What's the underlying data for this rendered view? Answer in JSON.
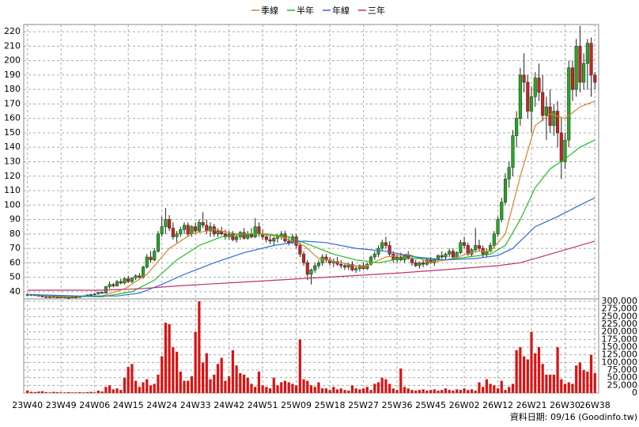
{
  "chart_data": {
    "type": "candlestick",
    "footnote": "資料日期: 09/16 (Goodinfo.tw)",
    "grid": true,
    "up_color": "#22aa22",
    "down_color": "#cc2222",
    "ylim": [
      35,
      225
    ],
    "yticks": [
      40,
      50,
      60,
      70,
      80,
      90,
      100,
      110,
      120,
      130,
      140,
      150,
      160,
      170,
      180,
      190,
      200,
      210,
      220
    ],
    "xlim": [
      -1,
      153
    ],
    "xticks": [
      {
        "value": 0,
        "label": "23W40"
      },
      {
        "value": 9,
        "label": "23W49"
      },
      {
        "value": 18,
        "label": "24W06"
      },
      {
        "value": 27,
        "label": "24W15"
      },
      {
        "value": 36,
        "label": "24W24"
      },
      {
        "value": 45,
        "label": "24W33"
      },
      {
        "value": 54,
        "label": "24W42"
      },
      {
        "value": 63,
        "label": "24W51"
      },
      {
        "value": 72,
        "label": "25W09"
      },
      {
        "value": 81,
        "label": "25W18"
      },
      {
        "value": 90,
        "label": "25W27"
      },
      {
        "value": 99,
        "label": "25W36"
      },
      {
        "value": 108,
        "label": "25W45"
      },
      {
        "value": 117,
        "label": "26W02"
      },
      {
        "value": 126,
        "label": "26W12"
      },
      {
        "value": 135,
        "label": "26W21"
      },
      {
        "value": 144,
        "label": "26W30"
      },
      {
        "value": 152,
        "label": "26W38"
      }
    ],
    "candles": [
      [
        38,
        39,
        37,
        38
      ],
      [
        38,
        38.5,
        37,
        37.5
      ],
      [
        37.5,
        38,
        37,
        37.8
      ],
      [
        37.8,
        38,
        36.5,
        37
      ],
      [
        37,
        37.5,
        36,
        36.5
      ],
      [
        36.5,
        37,
        35.5,
        36
      ],
      [
        36,
        36.8,
        35.5,
        36.5
      ],
      [
        36.5,
        37,
        36,
        36.2
      ],
      [
        36.2,
        36.8,
        35.8,
        36
      ],
      [
        36,
        36.5,
        35.5,
        36.3
      ],
      [
        36.3,
        36.8,
        35.8,
        36
      ],
      [
        36,
        36.5,
        35.5,
        35.8
      ],
      [
        35.8,
        36.5,
        35.5,
        36.2
      ],
      [
        36.2,
        36.8,
        35.8,
        36
      ],
      [
        36,
        37,
        35.8,
        36.8
      ],
      [
        36.8,
        37.5,
        36.5,
        37
      ],
      [
        37,
        38,
        36.8,
        37.8
      ],
      [
        37.8,
        38.5,
        37,
        38
      ],
      [
        38,
        39,
        37.5,
        38.5
      ],
      [
        38.5,
        40,
        38,
        39.5
      ],
      [
        39.5,
        40,
        38.5,
        39
      ],
      [
        39,
        44,
        38.8,
        43.5
      ],
      [
        43.5,
        47,
        42,
        45
      ],
      [
        45,
        46,
        43,
        44
      ],
      [
        44,
        48,
        43.5,
        47
      ],
      [
        47,
        49,
        45,
        46
      ],
      [
        46,
        50,
        45,
        49
      ],
      [
        49,
        51,
        46,
        47
      ],
      [
        47,
        50,
        46,
        49.5
      ],
      [
        49.5,
        52,
        48,
        51
      ],
      [
        51,
        53,
        49,
        50
      ],
      [
        50,
        58,
        49,
        57
      ],
      [
        57,
        66,
        56,
        64
      ],
      [
        64,
        68,
        60,
        62
      ],
      [
        62,
        70,
        61,
        68
      ],
      [
        68,
        82,
        67,
        80
      ],
      [
        80,
        92,
        78,
        85
      ],
      [
        85,
        98,
        80,
        90
      ],
      [
        90,
        93,
        82,
        84
      ],
      [
        84,
        88,
        76,
        78
      ],
      [
        78,
        82,
        74,
        80
      ],
      [
        80,
        85,
        78,
        83
      ],
      [
        83,
        88,
        80,
        86
      ],
      [
        86,
        88,
        78,
        80
      ],
      [
        80,
        86,
        78,
        85
      ],
      [
        85,
        88,
        80,
        82
      ],
      [
        82,
        90,
        81,
        88
      ],
      [
        88,
        95,
        84,
        86
      ],
      [
        86,
        90,
        80,
        82
      ],
      [
        82,
        88,
        78,
        85
      ],
      [
        85,
        87,
        78,
        80
      ],
      [
        80,
        84,
        78,
        82
      ],
      [
        82,
        85,
        79,
        80
      ],
      [
        80,
        83,
        76,
        78
      ],
      [
        78,
        82,
        76,
        80
      ],
      [
        80,
        82,
        75,
        76
      ],
      [
        76,
        80,
        74,
        78
      ],
      [
        78,
        82,
        76,
        81
      ],
      [
        81,
        84,
        76,
        77
      ],
      [
        77,
        82,
        76,
        80
      ],
      [
        80,
        84,
        77,
        78
      ],
      [
        78,
        91,
        77,
        85
      ],
      [
        85,
        88,
        78,
        80
      ],
      [
        80,
        83,
        76,
        78
      ],
      [
        78,
        80,
        74,
        76
      ],
      [
        76,
        79,
        73,
        75
      ],
      [
        75,
        78,
        72,
        77
      ],
      [
        77,
        80,
        74,
        78
      ],
      [
        78,
        82,
        76,
        80
      ],
      [
        80,
        82,
        74,
        75
      ],
      [
        75,
        78,
        72,
        74
      ],
      [
        74,
        80,
        73,
        78
      ],
      [
        78,
        80,
        70,
        72
      ],
      [
        72,
        74,
        64,
        66
      ],
      [
        66,
        68,
        58,
        60
      ],
      [
        60,
        62,
        48,
        52
      ],
      [
        52,
        56,
        45,
        55
      ],
      [
        55,
        60,
        53,
        58
      ],
      [
        58,
        62,
        56,
        60
      ],
      [
        60,
        66,
        58,
        64
      ],
      [
        64,
        66,
        60,
        62
      ],
      [
        62,
        64,
        58,
        60
      ],
      [
        60,
        63,
        57,
        61
      ],
      [
        61,
        64,
        58,
        59
      ],
      [
        59,
        62,
        56,
        58
      ],
      [
        58,
        60,
        55,
        57
      ],
      [
        57,
        60,
        55,
        59
      ],
      [
        59,
        61,
        54,
        55
      ],
      [
        55,
        58,
        53,
        56
      ],
      [
        56,
        59,
        54,
        58
      ],
      [
        58,
        60,
        55,
        56
      ],
      [
        56,
        60,
        55,
        59
      ],
      [
        59,
        65,
        58,
        64
      ],
      [
        64,
        68,
        62,
        66
      ],
      [
        66,
        72,
        64,
        70
      ],
      [
        70,
        76,
        68,
        74
      ],
      [
        74,
        78,
        70,
        72
      ],
      [
        72,
        75,
        64,
        66
      ],
      [
        66,
        68,
        60,
        62
      ],
      [
        62,
        66,
        60,
        64
      ],
      [
        64,
        67,
        61,
        62
      ],
      [
        62,
        66,
        60,
        65
      ],
      [
        65,
        68,
        62,
        63
      ],
      [
        63,
        64,
        58,
        60
      ],
      [
        60,
        62,
        57,
        58
      ],
      [
        58,
        61,
        56,
        60
      ],
      [
        60,
        62,
        57,
        59
      ],
      [
        59,
        63,
        58,
        62
      ],
      [
        62,
        64,
        59,
        60
      ],
      [
        60,
        63,
        58,
        62
      ],
      [
        62,
        66,
        61,
        65
      ],
      [
        65,
        68,
        63,
        64
      ],
      [
        64,
        67,
        62,
        66
      ],
      [
        66,
        70,
        64,
        68
      ],
      [
        68,
        70,
        62,
        64
      ],
      [
        64,
        68,
        63,
        67
      ],
      [
        67,
        76,
        66,
        74
      ],
      [
        74,
        78,
        70,
        72
      ],
      [
        72,
        74,
        65,
        66
      ],
      [
        66,
        70,
        64,
        69
      ],
      [
        69,
        84,
        67,
        72
      ],
      [
        72,
        76,
        68,
        70
      ],
      [
        70,
        72,
        64,
        66
      ],
      [
        66,
        70,
        64,
        68
      ],
      [
        68,
        74,
        67,
        72
      ],
      [
        72,
        82,
        70,
        80
      ],
      [
        80,
        92,
        78,
        90
      ],
      [
        90,
        105,
        88,
        102
      ],
      [
        102,
        122,
        100,
        118
      ],
      [
        118,
        130,
        112,
        126
      ],
      [
        126,
        152,
        120,
        148
      ],
      [
        148,
        165,
        140,
        160
      ],
      [
        160,
        195,
        155,
        190
      ],
      [
        190,
        205,
        178,
        185
      ],
      [
        185,
        190,
        160,
        165
      ],
      [
        165,
        182,
        150,
        175
      ],
      [
        175,
        192,
        168,
        188
      ],
      [
        188,
        198,
        172,
        178
      ],
      [
        178,
        190,
        158,
        162
      ],
      [
        162,
        175,
        145,
        168
      ],
      [
        168,
        180,
        150,
        155
      ],
      [
        155,
        170,
        148,
        165
      ],
      [
        165,
        172,
        140,
        150
      ],
      [
        150,
        160,
        118,
        130
      ],
      [
        130,
        150,
        125,
        145
      ],
      [
        145,
        200,
        140,
        195
      ],
      [
        195,
        200,
        172,
        180
      ],
      [
        180,
        215,
        175,
        210
      ],
      [
        210,
        224,
        178,
        185
      ],
      [
        185,
        205,
        180,
        198
      ],
      [
        198,
        215,
        180,
        212
      ],
      [
        212,
        216,
        175,
        190
      ],
      [
        190,
        192,
        180,
        185
      ]
    ],
    "series": [
      {
        "name": "季線",
        "color": "#d9822b",
        "x": [
          0,
          10,
          20,
          26,
          32,
          38,
          44,
          50,
          56,
          62,
          68,
          74,
          78,
          84,
          90,
          96,
          102,
          108,
          114,
          120,
          124,
          128,
          132,
          136,
          140,
          144,
          148,
          152
        ],
        "values": [
          38,
          36.5,
          37,
          42,
          52,
          70,
          80,
          83,
          80,
          80,
          78,
          72,
          63,
          60,
          57,
          64,
          66,
          60,
          63,
          68,
          68,
          80,
          120,
          155,
          163,
          160,
          168,
          172
        ]
      },
      {
        "name": "半年",
        "color": "#22bb22",
        "x": [
          0,
          10,
          20,
          28,
          34,
          40,
          46,
          52,
          58,
          64,
          70,
          76,
          82,
          88,
          94,
          100,
          106,
          112,
          118,
          124,
          128,
          132,
          136,
          140,
          144,
          148,
          152
        ],
        "values": [
          38,
          37,
          36.5,
          40,
          48,
          62,
          72,
          78,
          80,
          80,
          78,
          72,
          66,
          62,
          60,
          63,
          63,
          62,
          64,
          66,
          72,
          90,
          112,
          125,
          132,
          140,
          145
        ]
      },
      {
        "name": "年線",
        "color": "#2d6bd6",
        "x": [
          0,
          14,
          24,
          30,
          36,
          42,
          50,
          58,
          66,
          74,
          80,
          88,
          96,
          104,
          112,
          120,
          126,
          130,
          136,
          142,
          148,
          152
        ],
        "values": [
          38,
          37,
          37,
          39,
          45,
          52,
          60,
          67,
          72,
          75,
          74,
          70,
          68,
          64,
          62,
          63,
          65,
          70,
          85,
          92,
          100,
          105
        ]
      },
      {
        "name": "三年",
        "color": "#c0306a",
        "x": [
          0,
          20,
          30,
          40,
          60,
          80,
          100,
          116,
          126,
          132,
          140,
          148,
          152
        ],
        "values": [
          41,
          41,
          42,
          44,
          47,
          50,
          53,
          56,
          58,
          60,
          66,
          72,
          75
        ]
      }
    ],
    "volume": {
      "color": "#dd1111",
      "ylim": [
        0,
        300000
      ],
      "yticks": [
        {
          "value": 0,
          "label": "0"
        },
        {
          "value": 25000,
          "label": "25,000"
        },
        {
          "value": 50000,
          "label": "50,000"
        },
        {
          "value": 75000,
          "label": "75,000"
        },
        {
          "value": 100000,
          "label": "100,000"
        },
        {
          "value": 125000,
          "label": "125,000"
        },
        {
          "value": 150000,
          "label": "150,000"
        },
        {
          "value": 175000,
          "label": "175,000"
        },
        {
          "value": 200000,
          "label": "200,000"
        },
        {
          "value": 225000,
          "label": "225,000"
        },
        {
          "value": 250000,
          "label": "250,000"
        },
        {
          "value": 275000,
          "label": "275,000"
        },
        {
          "value": 300000,
          "label": "300,000"
        }
      ],
      "values": [
        8000,
        4000,
        3000,
        5000,
        6000,
        3000,
        2000,
        4000,
        3000,
        2000,
        2000,
        3000,
        2000,
        2000,
        3000,
        2000,
        3000,
        4000,
        2000,
        8000,
        5000,
        20000,
        25000,
        12000,
        15000,
        10000,
        50000,
        85000,
        95000,
        40000,
        20000,
        35000,
        45000,
        25000,
        30000,
        60000,
        120000,
        230000,
        225000,
        150000,
        135000,
        70000,
        40000,
        40000,
        55000,
        200000,
        300000,
        100000,
        130000,
        45000,
        60000,
        95000,
        115000,
        40000,
        55000,
        140000,
        90000,
        65000,
        60000,
        50000,
        30000,
        20000,
        70000,
        25000,
        20000,
        15000,
        50000,
        25000,
        35000,
        40000,
        35000,
        30000,
        25000,
        175000,
        45000,
        40000,
        25000,
        20000,
        35000,
        15000,
        15000,
        10000,
        20000,
        12000,
        15000,
        10000,
        8000,
        25000,
        15000,
        12000,
        15000,
        20000,
        10000,
        30000,
        35000,
        50000,
        45000,
        30000,
        15000,
        10000,
        80000,
        20000,
        15000,
        10000,
        8000,
        10000,
        12000,
        8000,
        10000,
        12000,
        8000,
        10000,
        15000,
        10000,
        8000,
        12000,
        10000,
        15000,
        10000,
        12000,
        8000,
        35000,
        20000,
        45000,
        30000,
        25000,
        15000,
        40000,
        10000,
        20000,
        30000,
        140000,
        150000,
        120000,
        110000,
        200000,
        130000,
        150000,
        95000,
        60000,
        60000,
        60000,
        150000,
        45000,
        30000,
        35000,
        30000,
        90000,
        100000,
        75000,
        70000,
        125000,
        65000
      ]
    }
  }
}
